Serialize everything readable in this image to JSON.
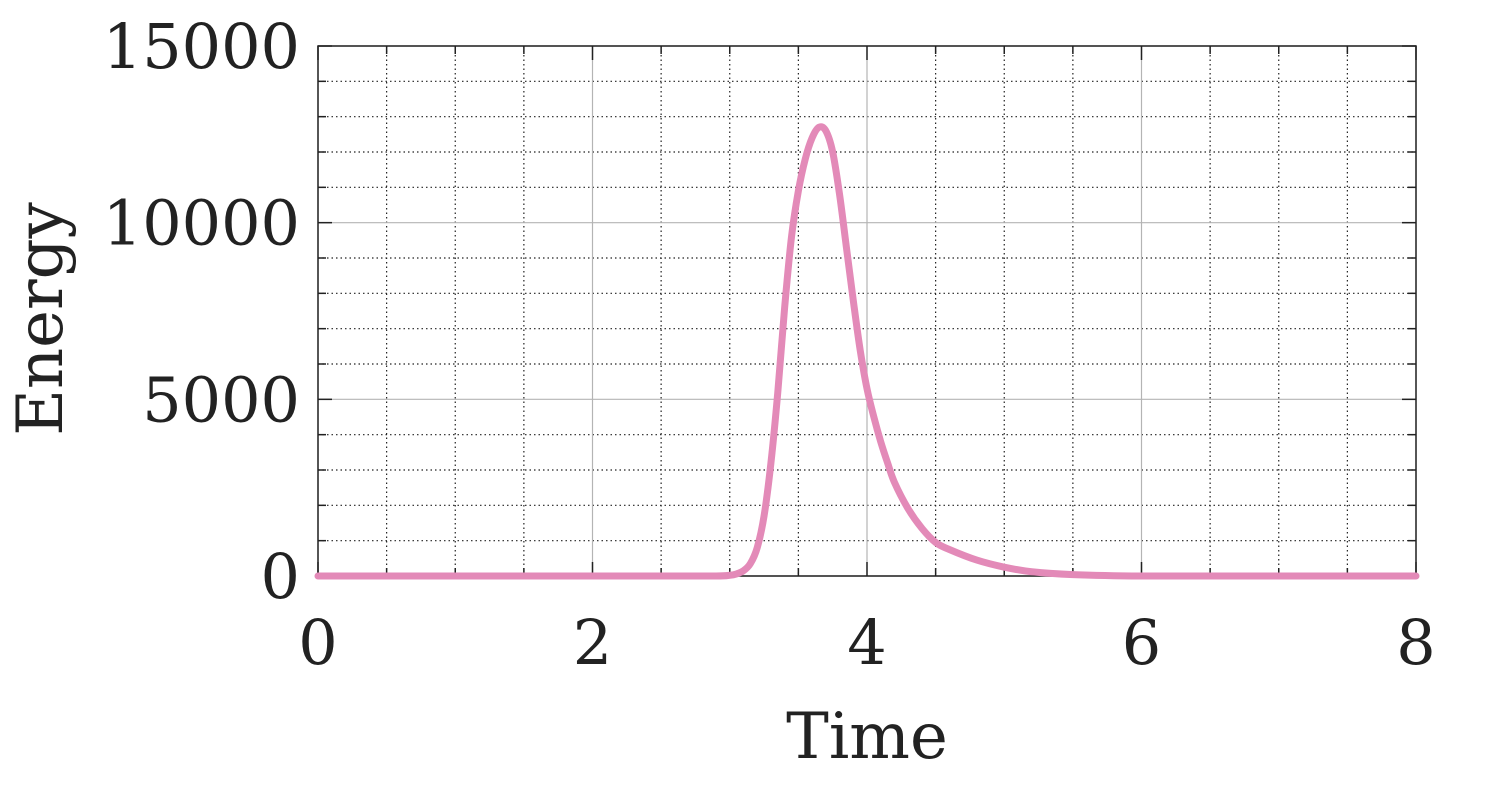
{
  "chart_data": {
    "type": "line",
    "xlabel": "Time",
    "ylabel": "Energy",
    "xlim": [
      0,
      8
    ],
    "ylim": [
      0,
      15000
    ],
    "x_ticks": [
      0,
      2,
      4,
      6,
      8
    ],
    "y_ticks": [
      0,
      5000,
      10000,
      15000
    ],
    "x_tick_labels": [
      "0",
      "2",
      "4",
      "6",
      "8"
    ],
    "y_tick_labels": [
      "0",
      "5000",
      "10000",
      "15000"
    ],
    "x_minor_step": 0.5,
    "y_minor_step": 1000,
    "grid": true,
    "line_color": "#e38ab8",
    "series": [
      {
        "x": [
          0,
          0.5,
          1,
          1.5,
          2,
          2.5,
          2.9,
          3.0,
          3.05,
          3.1,
          3.15,
          3.2,
          3.25,
          3.3,
          3.35,
          3.4,
          3.45,
          3.5,
          3.55,
          3.6,
          3.65,
          3.7,
          3.75,
          3.8,
          3.85,
          3.9,
          3.95,
          4.0,
          4.05,
          4.1,
          4.15,
          4.2,
          4.3,
          4.4,
          4.5,
          4.6,
          4.8,
          5.0,
          5.2,
          5.5,
          6.0,
          7.0,
          8.0
        ],
        "y": [
          0,
          0,
          0,
          0,
          0,
          0,
          0,
          20,
          60,
          150,
          350,
          800,
          1700,
          3200,
          5200,
          7600,
          9600,
          10900,
          11800,
          12400,
          12700,
          12600,
          12000,
          10800,
          9300,
          7800,
          6400,
          5300,
          4500,
          3800,
          3200,
          2650,
          1900,
          1350,
          950,
          750,
          450,
          250,
          120,
          40,
          0,
          0,
          0
        ]
      }
    ]
  }
}
